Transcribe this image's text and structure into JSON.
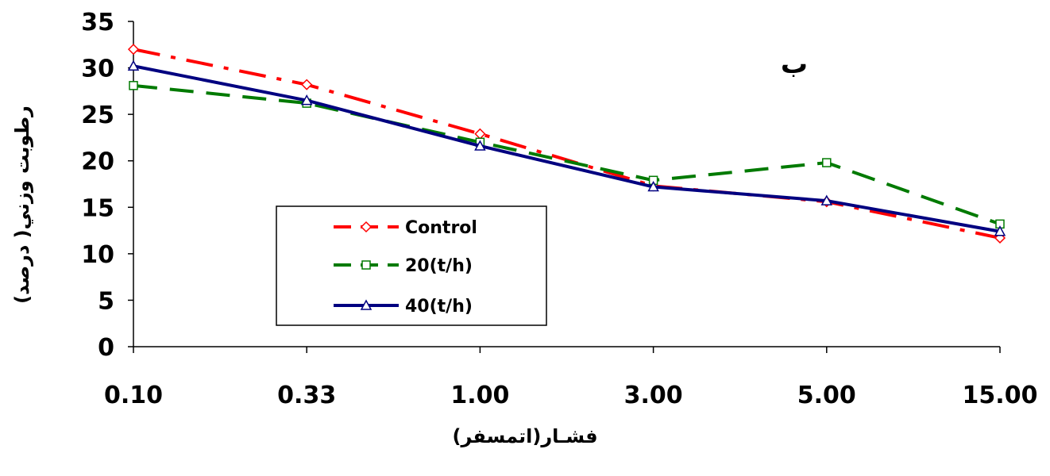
{
  "chart_data": {
    "type": "line",
    "panel_label": "ب",
    "xlabel": "فشـار(اتمسفر)",
    "ylabel": "رطوبت وزني( درصد)",
    "categories": [
      "0.10",
      "0.33",
      "1.00",
      "3.00",
      "5.00",
      "15.00"
    ],
    "ylim": [
      0,
      35
    ],
    "yticks": [
      "0",
      "5",
      "10",
      "15",
      "20",
      "25",
      "30",
      "35"
    ],
    "grid": false,
    "legend_position": "center-left",
    "series": [
      {
        "name": "Control",
        "color": "#ff0000",
        "marker": "diamond",
        "line_style": "dash-dot",
        "values": [
          32.0,
          28.2,
          22.9,
          17.3,
          15.6,
          11.7
        ]
      },
      {
        "name": "20(t/h)",
        "color": "#007a00",
        "marker": "square",
        "line_style": "dash",
        "values": [
          28.1,
          26.2,
          22.0,
          17.9,
          19.8,
          13.2
        ]
      },
      {
        "name": "40(t/h)",
        "color": "#000080",
        "marker": "triangle",
        "line_style": "solid",
        "values": [
          30.2,
          26.5,
          21.6,
          17.2,
          15.7,
          12.4
        ]
      }
    ]
  }
}
